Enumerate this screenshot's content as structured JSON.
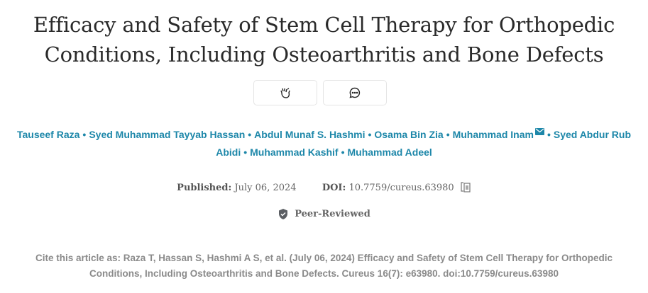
{
  "article": {
    "title_line1": "Efficacy and Safety of Stem Cell Therapy for Orthopedic",
    "title_line2": "Conditions, Including Osteoarthritis and Bone Defects",
    "authors": [
      "Tauseef Raza",
      "Syed Muhammad Tayyab Hassan",
      "Abdul Munaf S. Hashmi",
      "Osama Bin Zia",
      "Muhammad Inam",
      "Syed Abdur Rub Abidi",
      "Muhammad Kashif",
      "Muhammad Adeel"
    ],
    "separator": "•",
    "published_label": "Published:",
    "published_date": "July 06, 2024",
    "doi_label": "DOI:",
    "doi": "10.7759/cureus.63980",
    "peer_reviewed": "Peer-Reviewed",
    "cite_line1": "Cite this article as: Raza T, Hassan S, Hashmi A S, et al. (July 06, 2024) Efficacy and Safety of Stem Cell Therapy for Orthopedic",
    "cite_line2": "Conditions, Including Osteoarthritis and Bone Defects. Cureus 16(7): e63980. doi:10.7759/cureus.63980"
  },
  "icons": {
    "applaud": "clapping-hands-icon",
    "comment": "chat-bubble-icon",
    "mail": "envelope-icon",
    "copy": "copy-icon",
    "shield": "shield-check-icon"
  },
  "colors": {
    "author_link": "#1d87a9",
    "title": "#2a2a2a",
    "muted": "#8a8a8a"
  }
}
